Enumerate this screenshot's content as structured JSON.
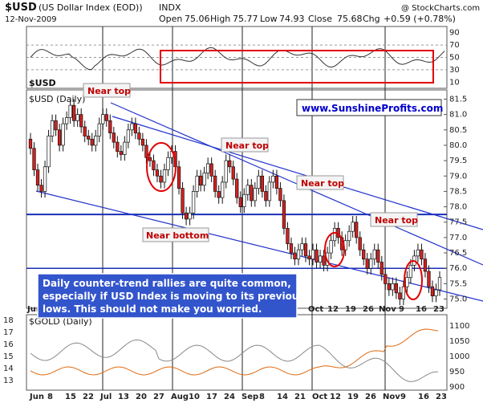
{
  "header": {
    "symbol": "$USD",
    "name": "(US Dollar Index (EOD))",
    "exchange": "INDX",
    "date": "12-Nov-2009",
    "open_label": "Open",
    "open": "75.06",
    "high_label": "High",
    "high": "75.77",
    "low_label": "Low",
    "low": "74.93",
    "close_label": "Close",
    "close": "75.68",
    "chg_label": "Chg",
    "chg": "+0.59 (+0.78%)",
    "watermark": "@ StockCharts.com"
  },
  "panels": {
    "rsi_label": "$USD",
    "rsi_ticks": [
      "90",
      "70",
      "50",
      "30",
      "10"
    ],
    "price_label": "$USD (Daily)",
    "price_ticks": [
      "81.5",
      "81.0",
      "80.5",
      "80.0",
      "79.5",
      "79.0",
      "78.5",
      "78.0",
      "77.5",
      "77.0",
      "76.5",
      "76.0",
      "75.5",
      "75.0"
    ],
    "gold_label": "$GOLD (Daily)",
    "gold_left_ticks": [
      "18",
      "17",
      "16",
      "15",
      "14",
      "13"
    ],
    "gold_right_ticks": [
      "1100",
      "1050",
      "1000",
      "950",
      "900"
    ],
    "x_ticks": [
      "Jun",
      "8",
      "15",
      "22",
      "Jul",
      "13",
      "20",
      "27",
      "Aug",
      "10",
      "17",
      "24",
      "Sep",
      "8",
      "14",
      "21",
      "Oct",
      "12",
      "19",
      "26",
      "Nov",
      "9",
      "16",
      "23"
    ],
    "price_x_ticks": [
      "Jun",
      "Jul",
      "Aug",
      "Sep",
      "Oct",
      "12",
      "19",
      "26",
      "Nov",
      "9",
      "16",
      "23"
    ]
  },
  "annotations": {
    "near_top_1": "Near top",
    "near_top_2": "Near top",
    "near_top_3": "Near top",
    "near_top_4": "Near top",
    "near_bottom": "Near bottom",
    "url": "www.SunshineProfits.com",
    "note_line1": "Daily counter-trend rallies are quite common,",
    "note_line2": "especially if USD Index is moving to its previous",
    "note_line3": "lows. This should not make you worried."
  },
  "colors": {
    "up": "#ffffff",
    "down": "#d42020",
    "trendline": "#2233cc",
    "support": "#1a2fb5",
    "annotation": "#d80000",
    "note_bg": "#3355cc",
    "gold_line": "#888888",
    "usd_overlay_line": "#e06a10"
  },
  "chart_data": {
    "type": "candlestick",
    "ylim": [
      74.7,
      81.8
    ],
    "support_level": 77.75,
    "second_level": 76.0,
    "closes": [
      79.9,
      79.2,
      78.7,
      78.5,
      79.3,
      80.3,
      80.8,
      80.5,
      80.0,
      80.7,
      80.9,
      81.3,
      80.8,
      81.0,
      80.6,
      80.3,
      80.2,
      80.0,
      80.3,
      80.7,
      81.0,
      80.8,
      80.4,
      80.1,
      79.8,
      79.7,
      80.1,
      80.5,
      80.7,
      80.4,
      80.2,
      80.0,
      79.6,
      79.5,
      79.2,
      79.0,
      78.8,
      79.2,
      79.6,
      79.8,
      79.3,
      78.6,
      77.8,
      77.6,
      77.8,
      78.5,
      79.0,
      78.7,
      79.1,
      79.4,
      79.0,
      78.5,
      78.3,
      78.8,
      79.5,
      79.3,
      78.9,
      78.3,
      78.0,
      78.4,
      78.7,
      78.2,
      78.6,
      79.0,
      78.5,
      78.2,
      78.8,
      79.0,
      78.6,
      78.2,
      77.3,
      76.8,
      76.5,
      76.3,
      76.6,
      76.8,
      76.4,
      76.3,
      76.6,
      76.2,
      76.4,
      76.1,
      76.5,
      76.9,
      77.3,
      77.0,
      76.6,
      76.9,
      77.2,
      77.5,
      77.0,
      76.6,
      76.3,
      76.0,
      76.3,
      76.6,
      76.2,
      75.8,
      75.5,
      75.3,
      75.5,
      75.2,
      75.0,
      75.4,
      75.7,
      76.1,
      76.4,
      76.6,
      76.3,
      75.9,
      75.4,
      75.1,
      75.3,
      75.7
    ]
  }
}
